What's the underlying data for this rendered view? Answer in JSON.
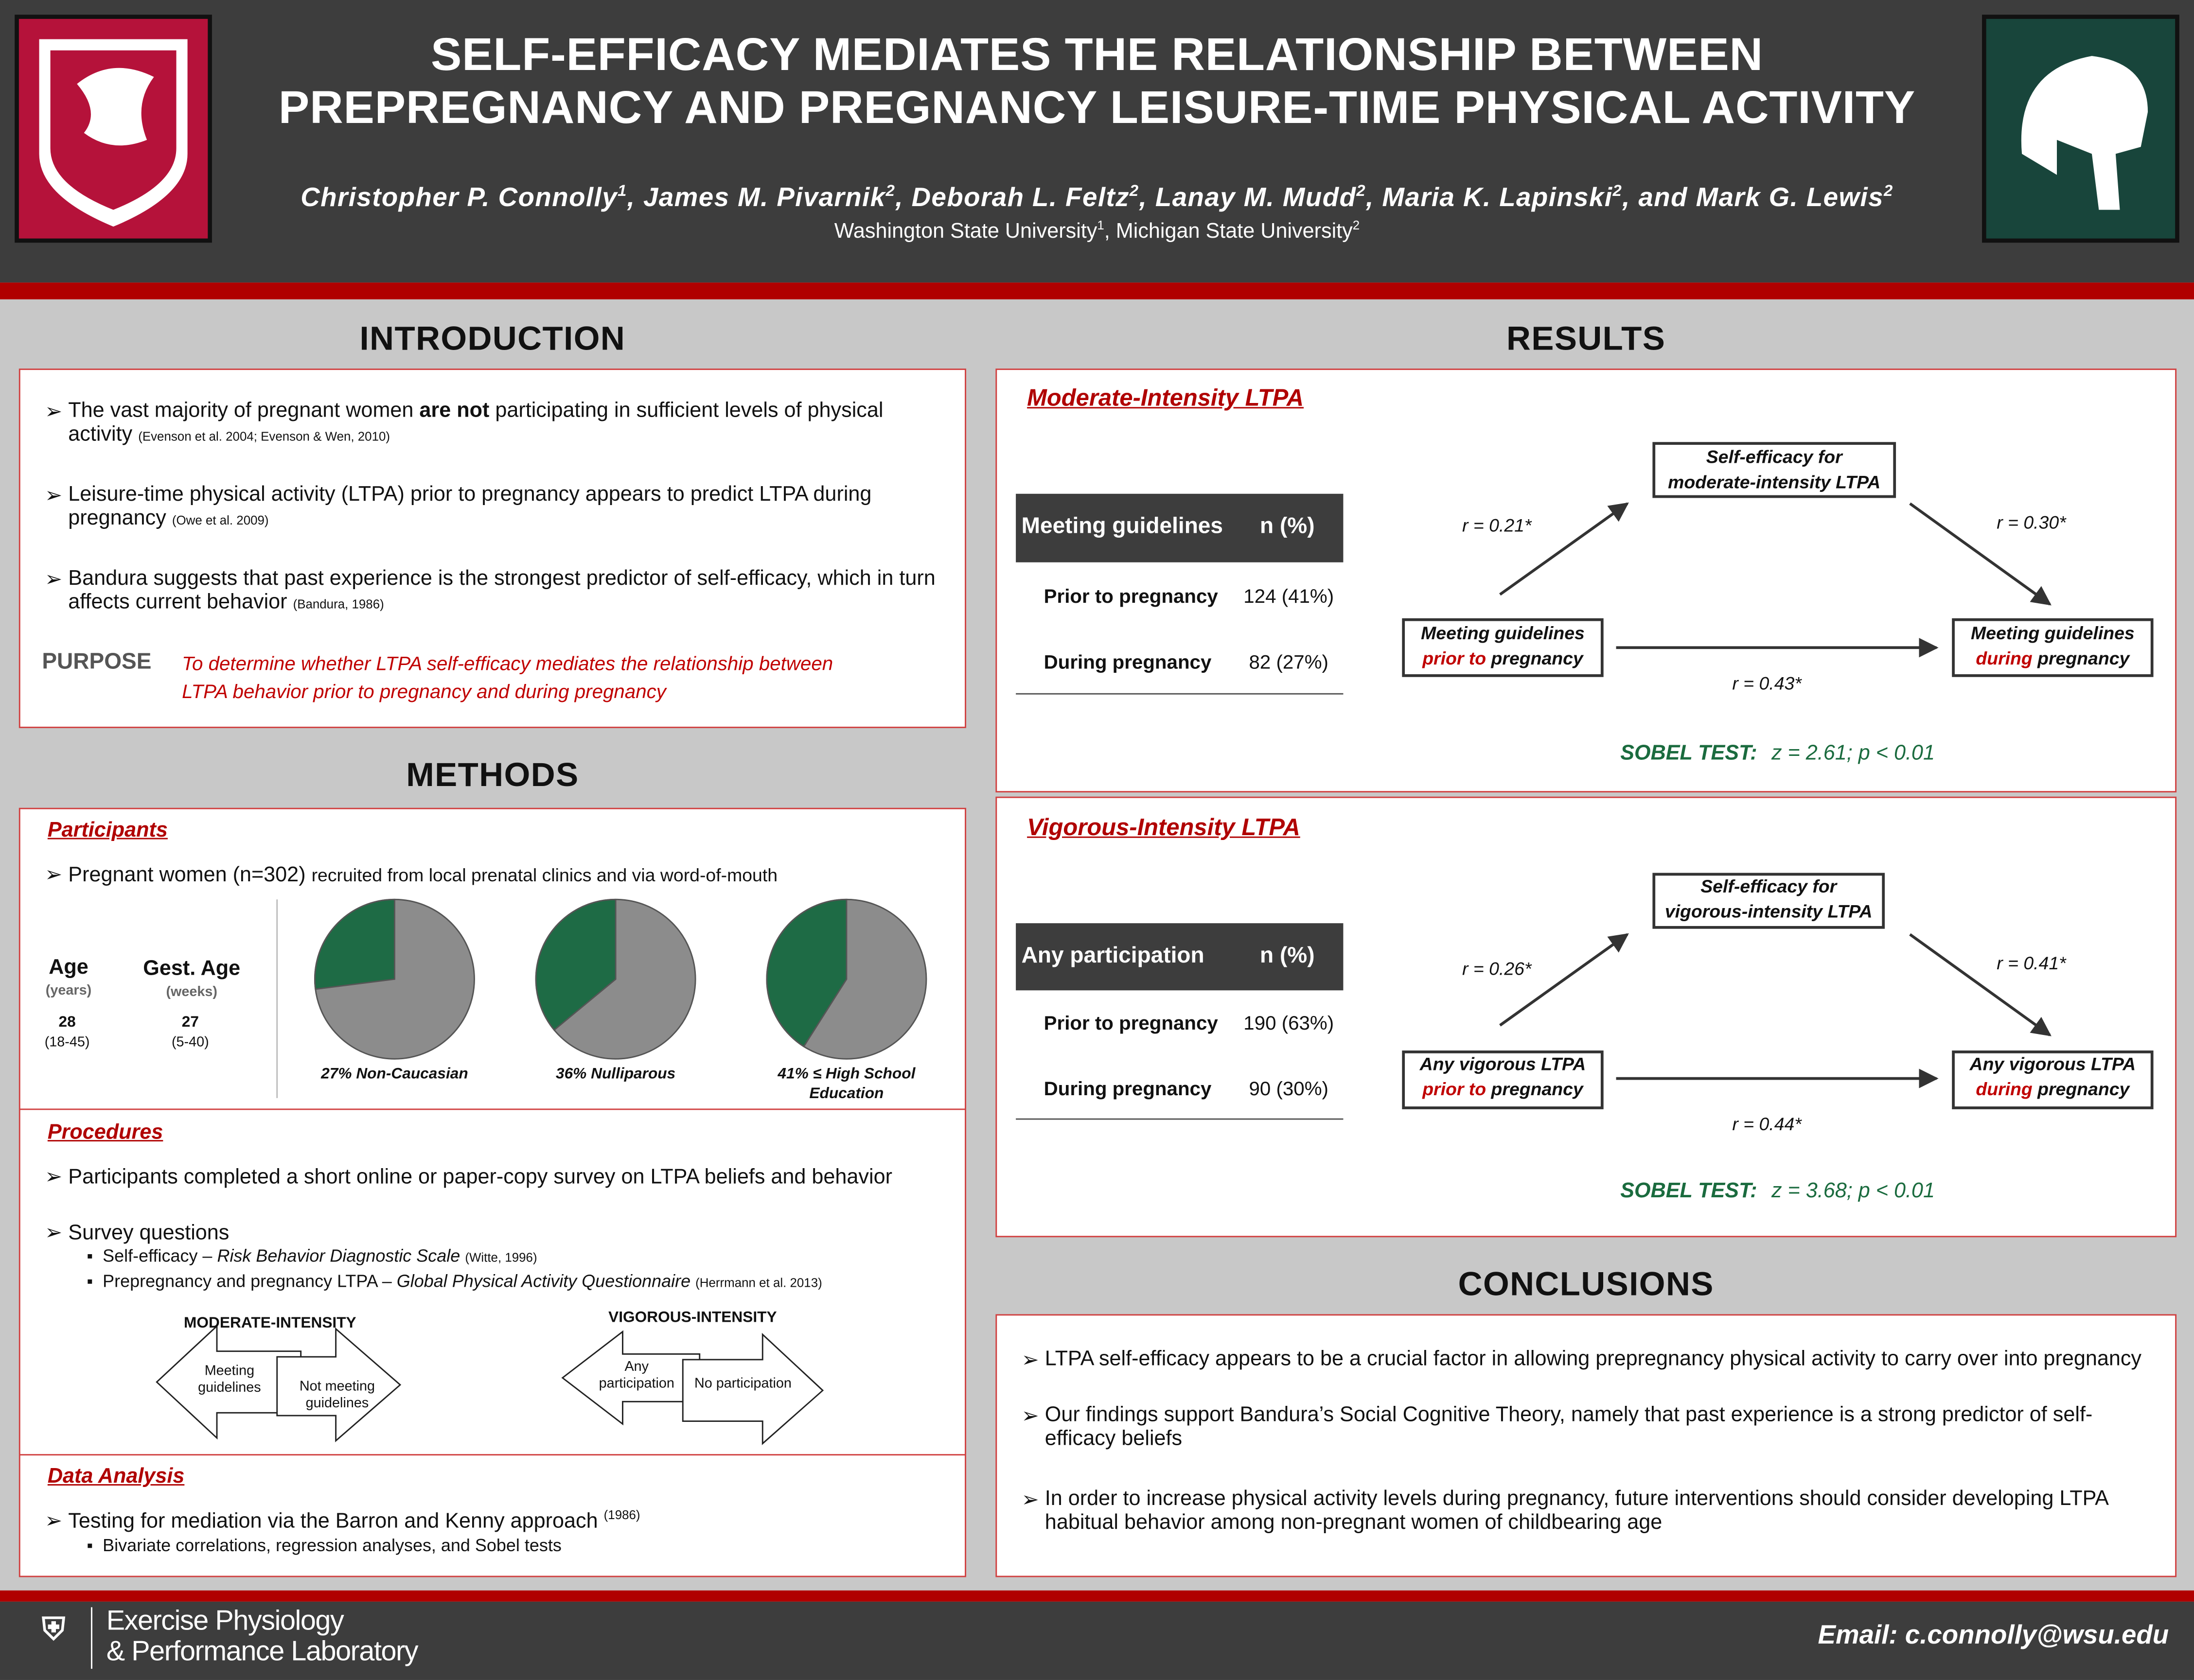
{
  "header": {
    "title_lines": [
      "SELF-EFFICACY MEDIATES THE RELATIONSHIP BETWEEN",
      "PREPREGNANCY AND PREGNANCY LEISURE-TIME PHYSICAL ACTIVITY"
    ],
    "authors": [
      {
        "name": "Christopher P. Connolly",
        "sup": "1"
      },
      {
        "name": ", James M. Pivarnik",
        "sup": "2"
      },
      {
        "name": ", Deborah L. Feltz",
        "sup": "2"
      },
      {
        "name": ", Lanay M. Mudd",
        "sup": "2"
      },
      {
        "name": ", Maria K. Lapinski",
        "sup": "2"
      },
      {
        "name": ", and Mark G. Lewis",
        "sup": "2"
      }
    ],
    "affiliations": [
      {
        "name": "Washington State University",
        "sup": "1"
      },
      {
        "name": ", Michigan State University",
        "sup": "2"
      }
    ]
  },
  "introduction": {
    "heading": "INTRODUCTION",
    "bullets": [
      {
        "parts": [
          "The vast majority of pregnant women ",
          "are not",
          " participating in sufficient levels of physical activity"
        ],
        "cite": "(Evenson et al. 2004; Evenson & Wen, 2010)"
      },
      {
        "parts": [
          "Leisure-time physical activity (LTPA) prior to pregnancy appears to predict LTPA during pregnancy"
        ],
        "cite": "(Owe et al. 2009)"
      },
      {
        "parts": [
          "Bandura suggests that past experience is the strongest predictor of self-efficacy, which in turn affects current behavior"
        ],
        "cite": "(Bandura, 1986)"
      }
    ],
    "purpose_label": "PURPOSE",
    "purpose_lines": [
      "To determine whether LTPA self-efficacy mediates the relationship between",
      "LTPA behavior prior to pregnancy and during pregnancy"
    ]
  },
  "methods": {
    "heading": "METHODS",
    "participants": {
      "heading": "Participants",
      "bullet": "Pregnant women (n=302)",
      "bullet_rest": "recruited from local prenatal clinics and via word-of-mouth",
      "age": {
        "label": "Age",
        "unit": "(years)",
        "value": "28",
        "range": "(18-45)"
      },
      "gest_age": {
        "label": "Gest. Age",
        "unit": "(weeks)",
        "value": "27",
        "range": "(5-40)"
      }
    },
    "pies": [
      {
        "value": 27,
        "label": "27% Non-Caucasian"
      },
      {
        "value": 36,
        "label": "36% Nulliparous"
      },
      {
        "value": 41,
        "label": "41% ≤ High School Education"
      }
    ],
    "procedures": {
      "heading": "Procedures",
      "bullets": [
        "Participants completed a short online or paper-copy survey on LTPA beliefs and behavior",
        "Survey questions"
      ],
      "sub_bullets": [
        {
          "text": "Self-efficacy – ",
          "italic": "Risk Behavior Diagnostic Scale",
          "cite": "(Witte, 1996)"
        },
        {
          "text": "Prepregnancy and pregnancy LTPA – ",
          "italic": "Global Physical Activity Questionnaire",
          "cite": "(Herrmann et al. 2013)"
        }
      ],
      "moderate": {
        "title": "MODERATE-INTENSITY",
        "left": "Meeting guidelines",
        "right": "Not meeting guidelines"
      },
      "vigorous": {
        "title": "VIGOROUS-INTENSITY",
        "left": "Any participation",
        "right": "No participation"
      }
    },
    "data_analysis": {
      "heading": "Data Analysis",
      "bullet": "Testing for mediation via the Barron and Kenny approach",
      "cite": "(1986)",
      "sub_bullet": "Bivariate correlations, regression analyses, and Sobel tests"
    }
  },
  "results": {
    "heading": "RESULTS",
    "panels": [
      {
        "heading": "Moderate-Intensity LTPA",
        "table": {
          "header": [
            "Meeting guidelines",
            "n (%)"
          ],
          "rows": [
            [
              "Prior to pregnancy",
              "124 (41%)"
            ],
            [
              "During pregnancy",
              "82 (27%)"
            ]
          ]
        },
        "mediator": [
          "Self-efficacy for",
          "moderate-intensity LTPA"
        ],
        "left_node": [
          "Meeting guidelines",
          "prior to",
          " pregnancy"
        ],
        "right_node": [
          "Meeting guidelines",
          "during",
          " pregnancy"
        ],
        "r_a": "r = 0.21*",
        "r_b": "r = 0.30*",
        "r_c": "r = 0.43*",
        "sobel_label": "SOBEL TEST:",
        "sobel": "z = 2.61; p < 0.01"
      },
      {
        "heading": "Vigorous-Intensity LTPA",
        "table": {
          "header": [
            "Any participation",
            "n (%)"
          ],
          "rows": [
            [
              "Prior to pregnancy",
              "190 (63%)"
            ],
            [
              "During pregnancy",
              "90 (30%)"
            ]
          ]
        },
        "mediator": [
          "Self-efficacy for",
          "vigorous-intensity LTPA"
        ],
        "left_node": [
          "Any vigorous LTPA",
          "prior to",
          " pregnancy"
        ],
        "right_node": [
          "Any vigorous LTPA",
          "during",
          " pregnancy"
        ],
        "r_a": "r = 0.26*",
        "r_b": "r = 0.41*",
        "r_c": "r = 0.44*",
        "sobel_label": "SOBEL TEST:",
        "sobel": "z = 3.68; p < 0.01"
      }
    ]
  },
  "conclusions": {
    "heading": "CONCLUSIONS",
    "bullets": [
      "LTPA self-efficacy appears to be a crucial factor in allowing prepregnancy physical activity to carry over into pregnancy",
      "Our findings support Bandura’s Social Cognitive Theory, namely that past experience is a strong predictor of self-efficacy beliefs",
      "In order to increase physical activity levels during pregnancy, future interventions should consider developing LTPA habitual behavior among non-pregnant women of childbearing age"
    ]
  },
  "footer": {
    "lab_lines": [
      "Exercise Physiology",
      "& Performance Laboratory"
    ],
    "email": "Email: c.connolly@wsu.edu"
  }
}
